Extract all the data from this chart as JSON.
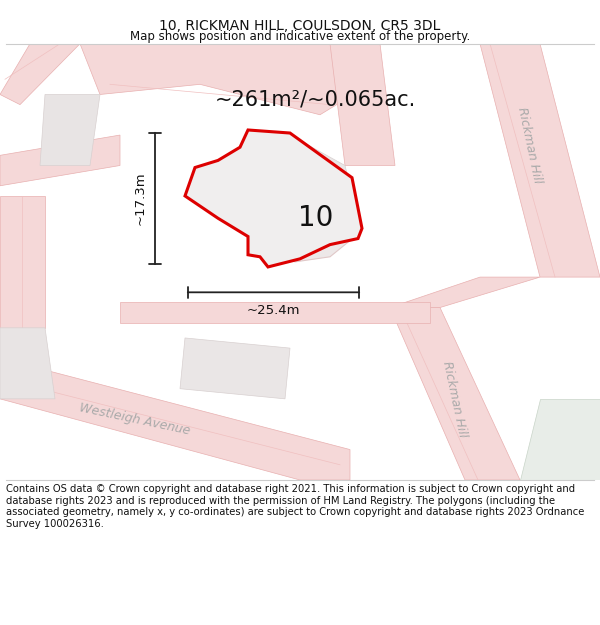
{
  "title": "10, RICKMAN HILL, COULSDON, CR5 3DL",
  "subtitle": "Map shows position and indicative extent of the property.",
  "area_label": "~261m²/~0.065ac.",
  "width_label": "~25.4m",
  "height_label": "~17.3m",
  "property_number": "10",
  "footer_text": "Contains OS data © Crown copyright and database right 2021. This information is subject to Crown copyright and database rights 2023 and is reproduced with the permission of HM Land Registry. The polygons (including the associated geometry, namely x, y co-ordinates) are subject to Crown copyright and database rights 2023 Ordnance Survey 100026316.",
  "bg_color": "#ffffff",
  "map_bg": "#faf7f7",
  "road_color": "#f5d8d8",
  "road_edge_color": "#e8b0b0",
  "road_line_color": "#f0c0c0",
  "property_outline_color": "#dd0000",
  "property_fill_color": "#f0eeee",
  "building_fill_color": "#e8e2e2",
  "building_edge_color": "#f0c8c8",
  "block_fill": "#e8e4e4",
  "block_edge": "#d8d0d0",
  "green_fill": "#e8ede8",
  "green_edge": "#c8d4c8",
  "dim_line_color": "#222222",
  "text_color": "#111111",
  "street_text_color": "#aaaaaa",
  "footer_text_color": "#111111",
  "title_fontsize": 10,
  "subtitle_fontsize": 8.5,
  "area_label_fontsize": 15,
  "number_fontsize": 20,
  "dim_fontsize": 9.5,
  "street_fontsize": 9,
  "footer_fontsize": 7.2
}
